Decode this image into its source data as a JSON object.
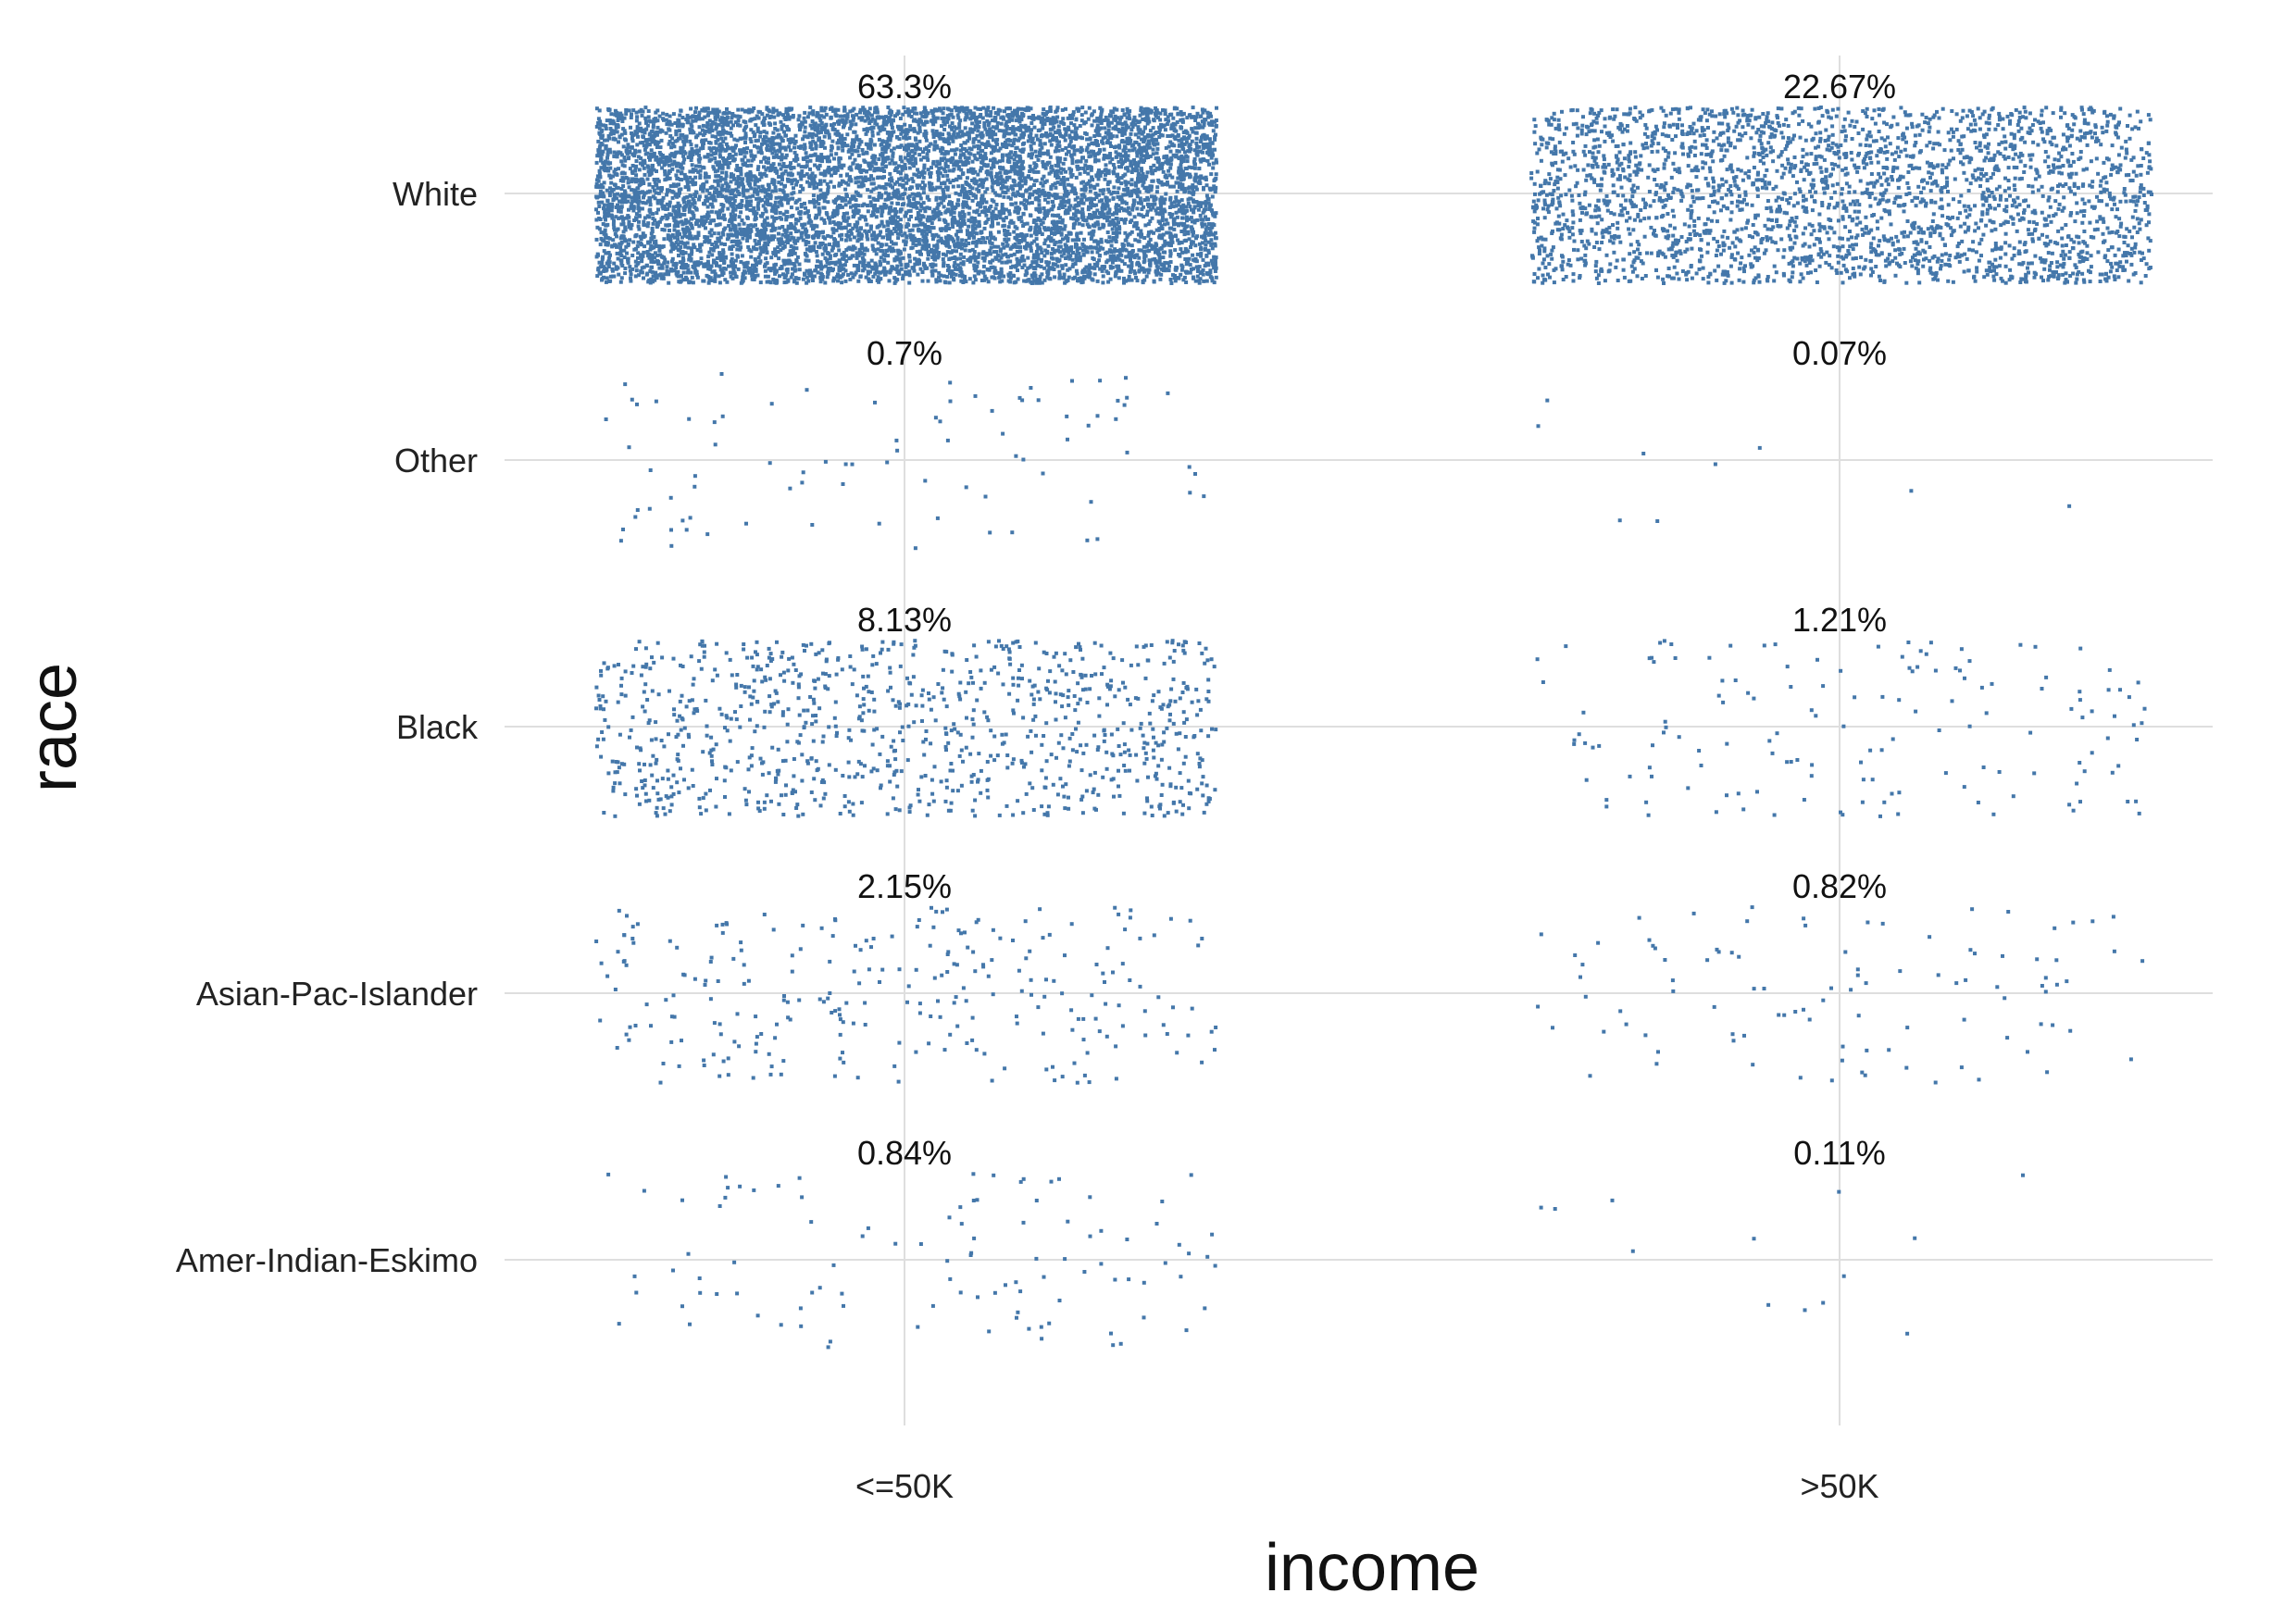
{
  "chart_data": {
    "type": "scatter",
    "subtype": "jitter-count-plot",
    "xlabel": "income",
    "ylabel": "race",
    "x_categories": [
      "<=50K",
      ">50K"
    ],
    "y_categories": [
      "White",
      "Other",
      "Black",
      "Asian-Pac-Islander",
      "Amer-Indian-Eskimo"
    ],
    "point_color": "#4477aa",
    "grid": true,
    "cells": [
      {
        "race": "White",
        "income": "<=50K",
        "label": "63.3%",
        "percent": 63.3
      },
      {
        "race": "White",
        "income": ">50K",
        "label": "22.67%",
        "percent": 22.67
      },
      {
        "race": "Other",
        "income": "<=50K",
        "label": "0.7%",
        "percent": 0.7
      },
      {
        "race": "Other",
        "income": ">50K",
        "label": "0.07%",
        "percent": 0.07
      },
      {
        "race": "Black",
        "income": "<=50K",
        "label": "8.13%",
        "percent": 8.13
      },
      {
        "race": "Black",
        "income": ">50K",
        "label": "1.21%",
        "percent": 1.21
      },
      {
        "race": "Asian-Pac-Islander",
        "income": "<=50K",
        "label": "2.15%",
        "percent": 2.15
      },
      {
        "race": "Asian-Pac-Islander",
        "income": ">50K",
        "label": "0.82%",
        "percent": 0.82
      },
      {
        "race": "Amer-Indian-Eskimo",
        "income": "<=50K",
        "label": "0.84%",
        "percent": 0.84
      },
      {
        "race": "Amer-Indian-Eskimo",
        "income": ">50K",
        "label": "0.11%",
        "percent": 0.11
      }
    ]
  }
}
